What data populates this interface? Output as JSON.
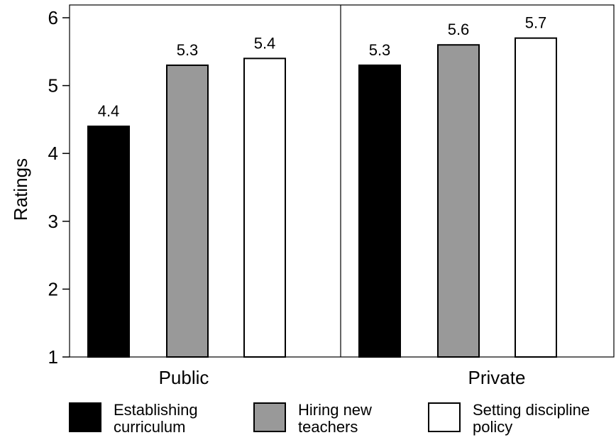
{
  "chart_data": {
    "type": "bar",
    "categories": [
      "Public",
      "Private"
    ],
    "series": [
      {
        "name": "Establishing curriculum",
        "values": [
          4.4,
          5.3
        ],
        "color": "#000000"
      },
      {
        "name": "Hiring new teachers",
        "values": [
          5.3,
          5.6
        ],
        "color": "#999999"
      },
      {
        "name": "Setting discipline policy",
        "values": [
          5.4,
          5.7
        ],
        "color": "#ffffff"
      }
    ],
    "legend_lines": [
      [
        "Establishing",
        "curriculum"
      ],
      [
        "Hiring new",
        "teachers"
      ],
      [
        "Setting discipline",
        "policy"
      ]
    ],
    "data_labels": [
      [
        "4.4",
        "5.3"
      ],
      [
        "5.3",
        "5.6"
      ],
      [
        "5.4",
        "5.7"
      ]
    ],
    "ylabel": "Ratings",
    "xlabel": "",
    "title": "",
    "ylim": [
      1,
      6
    ],
    "yticks": [
      "1",
      "2",
      "3",
      "4",
      "5",
      "6"
    ],
    "grid": false,
    "legend_position": "bottom"
  }
}
